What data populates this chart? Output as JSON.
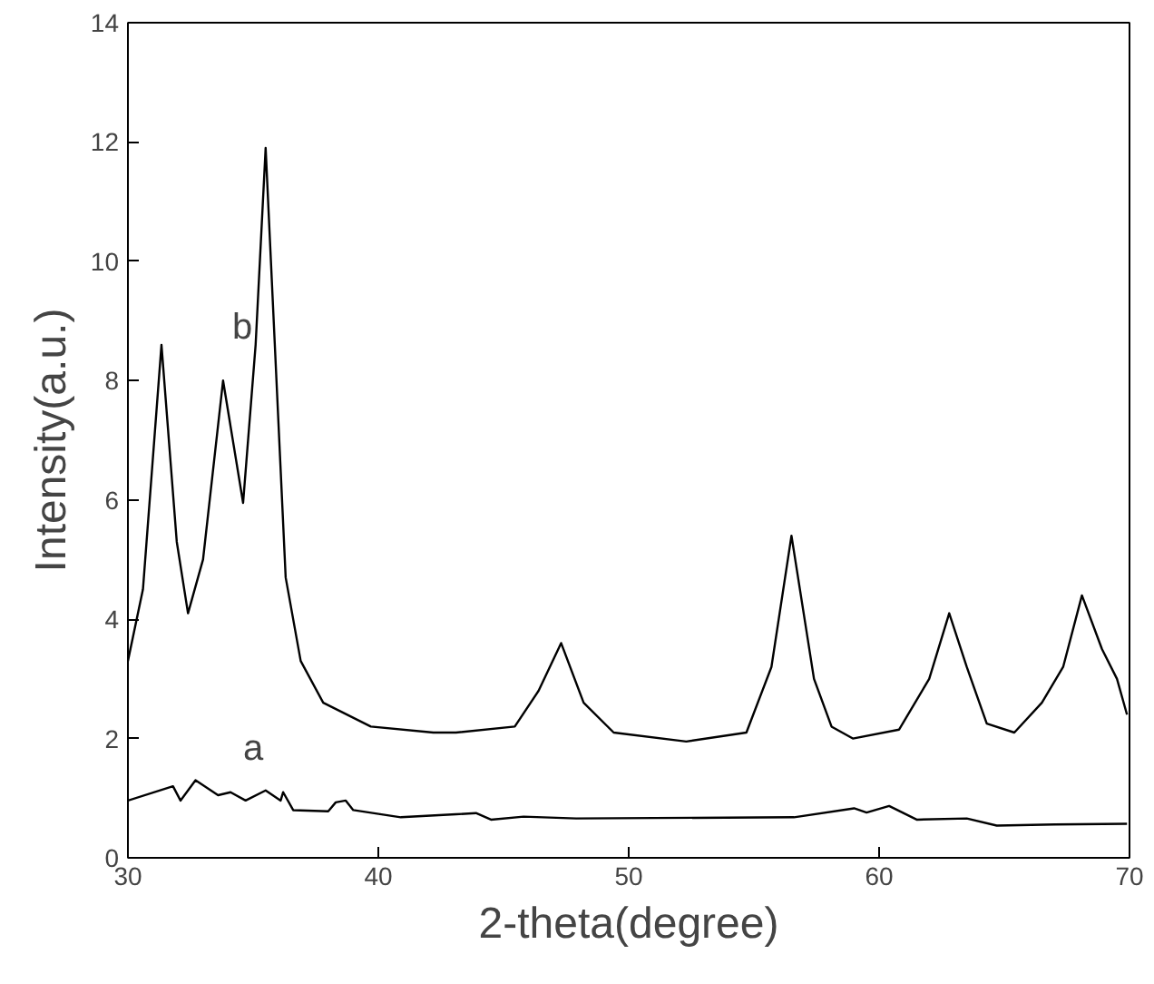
{
  "chart_data": {
    "type": "line",
    "xlabel": "2-theta(degree)",
    "ylabel": "Intensity(a.u.)",
    "xlim": [
      30,
      70
    ],
    "ylim": [
      0,
      14
    ],
    "xticks": [
      30,
      40,
      50,
      60,
      70
    ],
    "yticks": [
      0,
      2,
      4,
      6,
      8,
      10,
      12,
      14
    ],
    "grid": false,
    "marker": "none",
    "line_style": "solid",
    "series": [
      {
        "color": "#000000",
        "x": [
          30.0,
          30.6,
          31.34,
          31.95,
          32.4,
          33.0,
          33.8,
          34.6,
          35.1,
          35.5,
          36.3,
          36.9,
          37.8,
          39.7,
          42.2,
          43.1,
          45.45,
          46.4,
          47.3,
          48.2,
          49.4,
          52.3,
          54.7,
          55.7,
          56.5,
          57.4,
          58.1,
          58.95,
          60.8,
          62.0,
          62.8,
          63.5,
          64.3,
          65.4,
          66.5,
          67.35,
          68.1,
          68.9,
          69.5,
          69.9
        ],
        "values": [
          3.3,
          4.5,
          8.6,
          5.3,
          4.1,
          5.0,
          8.0,
          5.95,
          8.6,
          11.9,
          4.7,
          3.3,
          2.6,
          2.2,
          2.1,
          2.1,
          2.2,
          2.8,
          3.6,
          2.6,
          2.1,
          1.95,
          2.1,
          3.2,
          5.4,
          3.0,
          2.2,
          2.0,
          2.15,
          3.0,
          4.1,
          3.2,
          2.25,
          2.1,
          2.6,
          3.2,
          4.4,
          3.5,
          3.0,
          2.4
        ]
      },
      {
        "color": "#000000",
        "x": [
          30.0,
          31.8,
          32.1,
          32.7,
          33.6,
          34.1,
          34.7,
          35.5,
          36.1,
          36.2,
          36.6,
          38.0,
          38.3,
          38.7,
          39.0,
          40.9,
          43.1,
          43.9,
          44.5,
          45.8,
          47.9,
          56.6,
          59.0,
          59.5,
          60.4,
          61.5,
          63.5,
          64.7,
          67.0,
          69.9
        ],
        "values": [
          0.96,
          1.2,
          0.96,
          1.3,
          1.05,
          1.1,
          0.96,
          1.13,
          0.96,
          1.1,
          0.8,
          0.78,
          0.93,
          0.96,
          0.8,
          0.68,
          0.73,
          0.75,
          0.64,
          0.69,
          0.66,
          0.68,
          0.83,
          0.76,
          0.87,
          0.64,
          0.66,
          0.54,
          0.56,
          0.57
        ]
      }
    ],
    "annotations": [
      "b",
      "a"
    ]
  }
}
